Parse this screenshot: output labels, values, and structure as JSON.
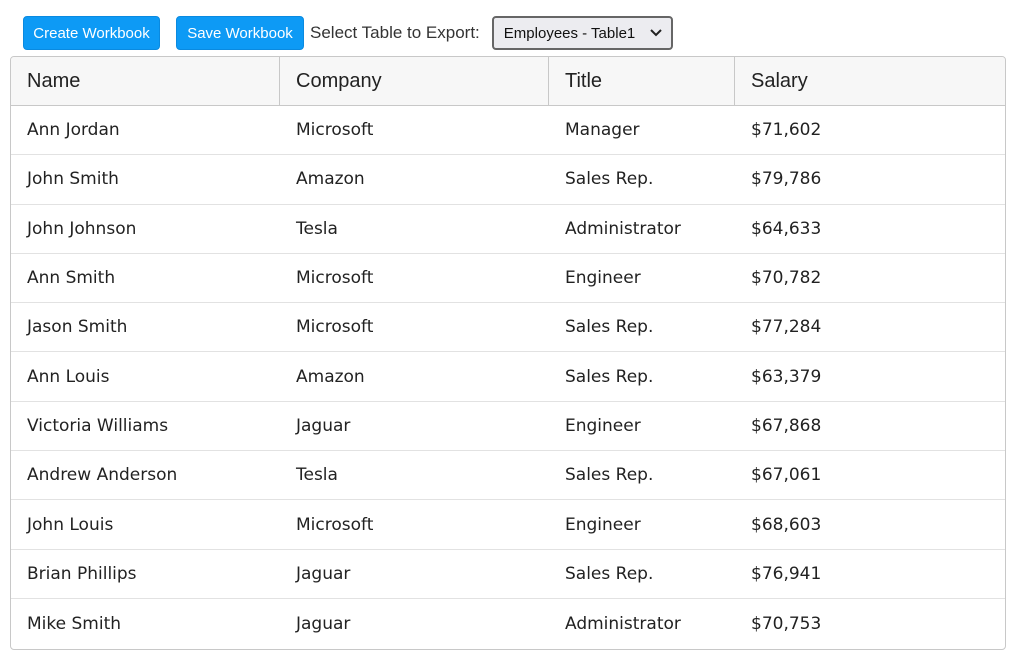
{
  "toolbar": {
    "create_label": "Create Workbook",
    "save_label": "Save Workbook",
    "select_label": "Select Table to Export:",
    "select_value": "Employees - Table1"
  },
  "colors": {
    "button_bg": "#0d9af5",
    "header_bg": "#f7f7f7"
  },
  "table": {
    "columns": [
      "Name",
      "Company",
      "Title",
      "Salary"
    ],
    "rows": [
      [
        "Ann Jordan",
        "Microsoft",
        "Manager",
        "$71,602"
      ],
      [
        "John Smith",
        "Amazon",
        "Sales Rep.",
        "$79,786"
      ],
      [
        "John Johnson",
        "Tesla",
        "Administrator",
        "$64,633"
      ],
      [
        "Ann Smith",
        "Microsoft",
        "Engineer",
        "$70,782"
      ],
      [
        "Jason Smith",
        "Microsoft",
        "Sales Rep.",
        "$77,284"
      ],
      [
        "Ann Louis",
        "Amazon",
        "Sales Rep.",
        "$63,379"
      ],
      [
        "Victoria Williams",
        "Jaguar",
        "Engineer",
        "$67,868"
      ],
      [
        "Andrew Anderson",
        "Tesla",
        "Sales Rep.",
        "$67,061"
      ],
      [
        "John Louis",
        "Microsoft",
        "Engineer",
        "$68,603"
      ],
      [
        "Brian Phillips",
        "Jaguar",
        "Sales Rep.",
        "$76,941"
      ],
      [
        "Mike Smith",
        "Jaguar",
        "Administrator",
        "$70,753"
      ]
    ]
  }
}
